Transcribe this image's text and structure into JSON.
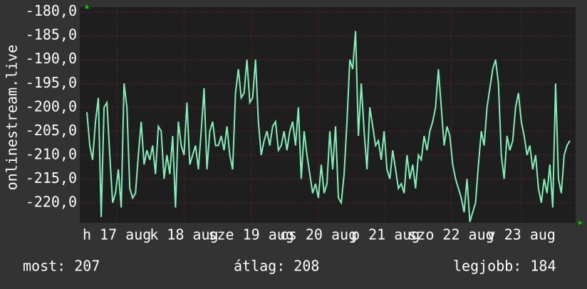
{
  "chart_data": {
    "type": "line",
    "y_label": "onlinestream.live",
    "xlim": [
      0,
      171
    ],
    "xticks": [
      {
        "value": 10.5,
        "label": "h 17 aug"
      },
      {
        "value": 34,
        "label": "k 18 aug"
      },
      {
        "value": 57.5,
        "label": "sze 19 aug"
      },
      {
        "value": 81,
        "label": "cs 20 aug"
      },
      {
        "value": 104.5,
        "label": "p 21 aug"
      },
      {
        "value": 127.5,
        "label": "szo 22 aug"
      },
      {
        "value": 152,
        "label": "v 23 aug"
      }
    ],
    "ylim": [
      -224.2,
      -179
    ],
    "yticks": [
      {
        "value": -180,
        "label": "-180,0"
      },
      {
        "value": -185,
        "label": "-185,0"
      },
      {
        "value": -190,
        "label": "-190,0"
      },
      {
        "value": -195,
        "label": "-195,0"
      },
      {
        "value": -200,
        "label": "-200,0"
      },
      {
        "value": -205,
        "label": "-205,0"
      },
      {
        "value": -210,
        "label": "-210,0"
      },
      {
        "value": -215,
        "label": "-215,0"
      },
      {
        "value": -220,
        "label": "-220,0"
      }
    ],
    "grid": true,
    "series": [
      {
        "color": "#80f0b8",
        "values": [
          -201,
          -208,
          -211,
          -203,
          -198,
          -223,
          -200,
          -199,
          -210,
          -220,
          -218,
          -213,
          -221,
          -195,
          -200,
          -217,
          -219,
          -218,
          -210,
          -203,
          -212,
          -209,
          -211,
          -208,
          -214,
          -204,
          -205,
          -215,
          -210,
          -214,
          -206,
          -221,
          -203,
          -208,
          -210,
          -199,
          -212,
          -210,
          -208,
          -213,
          -205,
          -196,
          -213,
          -205,
          -203,
          -208,
          -208,
          -206,
          -209,
          -204,
          -210,
          -213,
          -197,
          -192,
          -198,
          -197,
          -190,
          -199,
          -198,
          -190,
          -203,
          -210,
          -207,
          -205,
          -208,
          -204,
          -203,
          -209,
          -208,
          -205,
          -209,
          -205,
          -203,
          -208,
          -200,
          -215,
          -205,
          -210,
          -214,
          -218,
          -216,
          -219,
          -212,
          -218,
          -216,
          -205,
          -213,
          -204,
          -219,
          -220,
          -214,
          -203,
          -190,
          -192,
          -184,
          -206,
          -195,
          -205,
          -213,
          -200,
          -204,
          -208,
          -207,
          -211,
          -205,
          -213,
          -215,
          -209,
          -213,
          -217,
          -216,
          -218,
          -210,
          -215,
          -212,
          -217,
          -210,
          -211,
          -206,
          -209,
          -205,
          -203,
          -200,
          -192,
          -200,
          -208,
          -204,
          -206,
          -212,
          -215,
          -217,
          -219,
          -222,
          -215,
          -224,
          -222,
          -220,
          -212,
          -205,
          -208,
          -200,
          -196,
          -192,
          -190,
          -195,
          -210,
          -215,
          -206,
          -209,
          -207,
          -200,
          -197,
          -203,
          -206,
          -210,
          -208,
          -213,
          -210,
          -217,
          -220,
          -215,
          -218,
          -212,
          -221,
          -195,
          -215,
          -218,
          -210,
          -208,
          -207
        ]
      }
    ]
  },
  "footer": {
    "current": "most: 207",
    "average": "átlag: 208",
    "best": "legjobb: 184"
  }
}
